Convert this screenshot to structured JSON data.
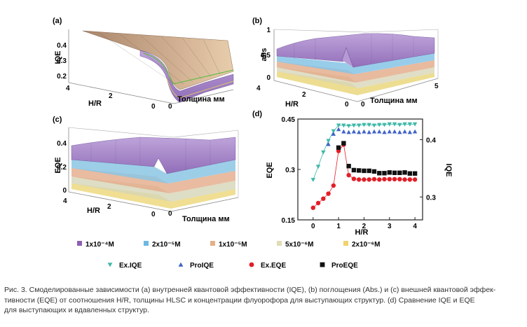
{
  "panels": {
    "a": {
      "label": "(a)",
      "zlabel": "IQE",
      "zticks": [
        "0.4",
        "0.3",
        "0.2"
      ],
      "hr_label": "H/R",
      "hr_ticks": [
        "4",
        "2",
        "0"
      ],
      "thick_label": "Толщина  мм",
      "thick_ticks": [
        "0"
      ]
    },
    "b": {
      "label": "(b)",
      "zlabel": "abs",
      "zticks": [
        "1",
        "0.5",
        "0"
      ],
      "hr_label": "H/R",
      "hr_ticks": [
        "4",
        "2",
        "0"
      ],
      "thick_label": "Толщина  мм",
      "thick_ticks": [
        "0",
        "5"
      ]
    },
    "c": {
      "label": "(c)",
      "zlabel": "EQE",
      "zticks": [
        "0.4",
        "0.2",
        "0"
      ],
      "hr_label": "H/R",
      "hr_ticks": [
        "4",
        "2",
        "0"
      ],
      "thick_label": "Толщина  мм",
      "thick_ticks": [
        "0"
      ]
    },
    "d": {
      "label": "(d)"
    }
  },
  "chart_data": [
    {
      "panel": "d",
      "type": "scatter",
      "xlabel": "H/R",
      "ylabel_left": "EQE",
      "ylabel_right": "IQE",
      "xticks": [
        "0",
        "1",
        "2",
        "3",
        "4"
      ],
      "yticks_left": [
        "0.45",
        "0.3",
        "0.15"
      ],
      "yticks_right": [
        "0.4",
        "0.3"
      ],
      "xlim": [
        -0.6,
        4.3
      ],
      "ylim_left": [
        0.15,
        0.45
      ],
      "ylim_right": [
        0.26,
        0.436
      ],
      "series": [
        {
          "name": "Ex.IQE",
          "axis": "right",
          "marker": "triangle-down",
          "color": "#3db8a8",
          "line": true,
          "x": [
            0,
            0.2,
            0.4,
            0.6,
            0.8,
            1.0,
            1.2,
            1.4,
            1.6,
            1.8,
            2.0,
            2.2,
            2.4,
            2.6,
            2.8,
            3.0,
            3.2,
            3.4,
            3.6,
            3.8,
            4.0
          ],
          "y": [
            0.33,
            0.353,
            0.378,
            0.398,
            0.415,
            0.425,
            0.425,
            0.424,
            0.425,
            0.425,
            0.426,
            0.426,
            0.425,
            0.426,
            0.426,
            0.427,
            0.427,
            0.426,
            0.427,
            0.427,
            0.427
          ]
        },
        {
          "name": "ProIQE",
          "axis": "right",
          "marker": "triangle-up",
          "color": "#3f63c8",
          "line": false,
          "x": [
            0.6,
            0.8,
            1.0,
            1.2,
            1.4,
            1.6,
            1.8,
            2.0,
            2.2,
            2.4,
            2.6,
            2.8,
            3.0,
            3.2,
            3.4,
            3.6,
            3.8,
            4.0
          ],
          "y": [
            0.392,
            0.41,
            0.418,
            0.414,
            0.413,
            0.414,
            0.413,
            0.414,
            0.413,
            0.414,
            0.414,
            0.413,
            0.414,
            0.414,
            0.413,
            0.414,
            0.413,
            0.414
          ]
        },
        {
          "name": "Ex.EQE",
          "axis": "left",
          "marker": "circle",
          "color": "#e21e26",
          "line": true,
          "x": [
            0,
            0.2,
            0.4,
            0.6,
            0.8,
            1.0,
            1.2,
            1.4,
            1.6,
            1.8,
            2.0,
            2.2,
            2.4,
            2.6,
            2.8,
            3.0,
            3.2,
            3.4,
            3.6,
            3.8,
            4.0
          ],
          "y": [
            0.186,
            0.2,
            0.213,
            0.228,
            0.252,
            0.355,
            0.374,
            0.283,
            0.272,
            0.27,
            0.27,
            0.27,
            0.271,
            0.27,
            0.271,
            0.271,
            0.271,
            0.271,
            0.27,
            0.27,
            0.27
          ]
        },
        {
          "name": "ProEQE",
          "axis": "left",
          "marker": "square",
          "color": "#111111",
          "line": false,
          "x": [
            1.0,
            1.2,
            1.4,
            1.6,
            1.8,
            2.0,
            2.2,
            2.4,
            2.6,
            2.8,
            3.0,
            3.2,
            3.4,
            3.6,
            3.8,
            4.0
          ],
          "y": [
            0.365,
            0.378,
            0.31,
            0.298,
            0.297,
            0.296,
            0.296,
            0.294,
            0.289,
            0.289,
            0.291,
            0.29,
            0.29,
            0.291,
            0.288,
            0.288
          ]
        }
      ]
    }
  ],
  "surface_legend": [
    {
      "label": "1x10⁻⁴M",
      "color": "#8e5fb3"
    },
    {
      "label": "2x10⁻⁵M",
      "color": "#6db8e4"
    },
    {
      "label": "1x10⁻⁵M",
      "color": "#e3b089"
    },
    {
      "label": "5x10⁻⁶M",
      "color": "#e2dcb4"
    },
    {
      "label": "2x10⁻⁶M",
      "color": "#f1d36e"
    }
  ],
  "scatter_legend": [
    {
      "label": "Ex.IQE",
      "marker": "triangle-down",
      "color": "#3db8a8"
    },
    {
      "label": "ProIQE",
      "marker": "triangle-up",
      "color": "#3f63c8"
    },
    {
      "label": "Ex.EQE",
      "marker": "circle",
      "color": "#e21e26"
    },
    {
      "label": "ProEQE",
      "marker": "square",
      "color": "#111111"
    }
  ],
  "caption": {
    "line1": "Рис. 3. Смоделированные зависимости (а) внутренней квантовой эффективности (IQE), (b) поглощения (Abs.) и (c) внешней квантовой эффек-",
    "line2": "тивности (EQE) от соотношения H/R, толщины HLSC и концентрации флуорофора для выступающих структур. (d) Сравнение IQE и EQE",
    "line3": "для выступающих и вдавленных структур."
  }
}
